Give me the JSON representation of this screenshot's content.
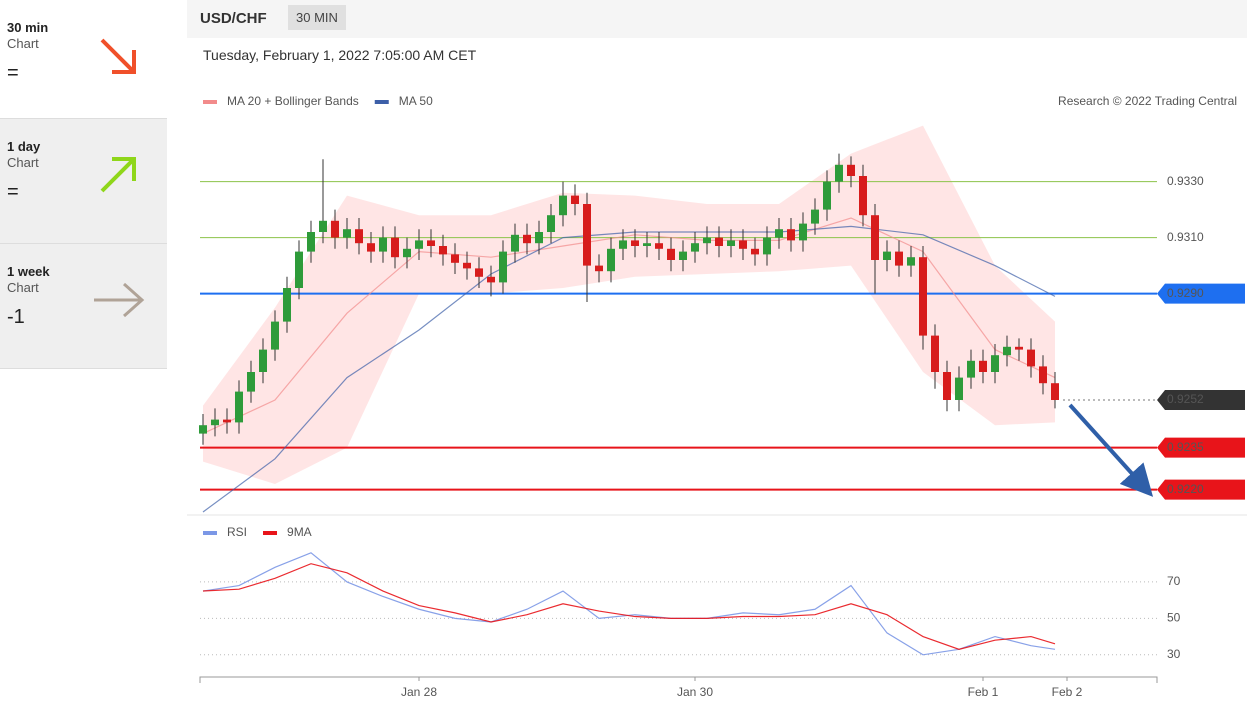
{
  "sidebar": [
    {
      "period": "30 min",
      "type": "Chart",
      "rating": "="
    },
    {
      "period": "1 day",
      "type": "Chart",
      "rating": "="
    },
    {
      "period": "1 week",
      "type": "Chart",
      "rating": "-1"
    }
  ],
  "header": {
    "symbol": "USD/CHF",
    "interval": "30 MIN",
    "datetime": "Tuesday, February 1, 2022 7:05:00 AM CET",
    "credit": "Research © 2022 Trading Central"
  },
  "chart_data": [
    {
      "type": "candlestick",
      "up_color": "#2e9b3a",
      "down_color": "#d71c1c",
      "x": [
        0,
        1,
        2,
        3,
        4,
        5,
        6,
        7,
        8,
        9,
        10,
        11,
        12,
        13,
        14,
        15,
        16,
        17,
        18,
        19,
        20,
        21,
        22,
        23,
        24,
        25,
        26,
        27,
        28,
        29,
        30,
        31,
        32,
        33,
        34,
        35,
        36,
        37,
        38,
        39,
        40,
        41,
        42,
        43,
        44,
        45,
        46,
        47,
        48,
        49,
        50,
        51,
        52,
        53,
        54,
        55,
        56,
        57,
        58,
        59,
        60,
        61,
        62,
        63,
        64,
        65,
        66,
        67,
        68,
        69,
        70,
        71
      ],
      "ohlc": [
        [
          0.924,
          0.9247,
          0.9236,
          0.9243
        ],
        [
          0.9243,
          0.9249,
          0.9239,
          0.9245
        ],
        [
          0.9245,
          0.9249,
          0.924,
          0.9244
        ],
        [
          0.9244,
          0.9259,
          0.924,
          0.9255
        ],
        [
          0.9255,
          0.9266,
          0.9251,
          0.9262
        ],
        [
          0.9262,
          0.9274,
          0.9258,
          0.927
        ],
        [
          0.927,
          0.9284,
          0.9266,
          0.928
        ],
        [
          0.928,
          0.9296,
          0.9276,
          0.9292
        ],
        [
          0.9292,
          0.9309,
          0.9288,
          0.9305
        ],
        [
          0.9305,
          0.9316,
          0.9301,
          0.9312
        ],
        [
          0.9312,
          0.9338,
          0.9308,
          0.9316
        ],
        [
          0.9316,
          0.932,
          0.9306,
          0.931
        ],
        [
          0.931,
          0.9317,
          0.9306,
          0.9313
        ],
        [
          0.9313,
          0.9317,
          0.9304,
          0.9308
        ],
        [
          0.9308,
          0.9312,
          0.9301,
          0.9305
        ],
        [
          0.9305,
          0.9314,
          0.9301,
          0.931
        ],
        [
          0.931,
          0.9314,
          0.9299,
          0.9303
        ],
        [
          0.9303,
          0.931,
          0.9299,
          0.9306
        ],
        [
          0.9306,
          0.9313,
          0.9302,
          0.9309
        ],
        [
          0.9309,
          0.9313,
          0.9303,
          0.9307
        ],
        [
          0.9307,
          0.9311,
          0.93,
          0.9304
        ],
        [
          0.9304,
          0.9308,
          0.9297,
          0.9301
        ],
        [
          0.9301,
          0.9305,
          0.9295,
          0.9299
        ],
        [
          0.9299,
          0.9303,
          0.9292,
          0.9296
        ],
        [
          0.9296,
          0.93,
          0.9289,
          0.9294
        ],
        [
          0.9294,
          0.9309,
          0.929,
          0.9305
        ],
        [
          0.9305,
          0.9315,
          0.9301,
          0.9311
        ],
        [
          0.9311,
          0.9315,
          0.9304,
          0.9308
        ],
        [
          0.9308,
          0.9316,
          0.9304,
          0.9312
        ],
        [
          0.9312,
          0.9322,
          0.9308,
          0.9318
        ],
        [
          0.9318,
          0.933,
          0.9314,
          0.9325
        ],
        [
          0.9325,
          0.9329,
          0.9318,
          0.9322
        ],
        [
          0.9322,
          0.9326,
          0.9287,
          0.93
        ],
        [
          0.93,
          0.9304,
          0.9294,
          0.9298
        ],
        [
          0.9298,
          0.931,
          0.9294,
          0.9306
        ],
        [
          0.9306,
          0.9313,
          0.9302,
          0.9309
        ],
        [
          0.9309,
          0.9313,
          0.9303,
          0.9307
        ],
        [
          0.9307,
          0.9312,
          0.9303,
          0.9308
        ],
        [
          0.9308,
          0.9312,
          0.9302,
          0.9306
        ],
        [
          0.9306,
          0.931,
          0.9298,
          0.9302
        ],
        [
          0.9302,
          0.9309,
          0.9298,
          0.9305
        ],
        [
          0.9305,
          0.9312,
          0.9301,
          0.9308
        ],
        [
          0.9308,
          0.9314,
          0.9304,
          0.931
        ],
        [
          0.931,
          0.9314,
          0.9303,
          0.9307
        ],
        [
          0.9307,
          0.9313,
          0.9303,
          0.9309
        ],
        [
          0.9309,
          0.9313,
          0.9302,
          0.9306
        ],
        [
          0.9306,
          0.931,
          0.93,
          0.9304
        ],
        [
          0.9304,
          0.9314,
          0.93,
          0.931
        ],
        [
          0.931,
          0.9317,
          0.9306,
          0.9313
        ],
        [
          0.9313,
          0.9317,
          0.9305,
          0.9309
        ],
        [
          0.9309,
          0.9319,
          0.9305,
          0.9315
        ],
        [
          0.9315,
          0.9324,
          0.9311,
          0.932
        ],
        [
          0.932,
          0.9334,
          0.9316,
          0.933
        ],
        [
          0.933,
          0.934,
          0.9326,
          0.9336
        ],
        [
          0.9336,
          0.9339,
          0.9328,
          0.9332
        ],
        [
          0.9332,
          0.9336,
          0.9314,
          0.9318
        ],
        [
          0.9318,
          0.9322,
          0.929,
          0.9302
        ],
        [
          0.9302,
          0.9309,
          0.9298,
          0.9305
        ],
        [
          0.9305,
          0.9309,
          0.9296,
          0.93
        ],
        [
          0.93,
          0.9307,
          0.9296,
          0.9303
        ],
        [
          0.9303,
          0.9307,
          0.927,
          0.9275
        ],
        [
          0.9275,
          0.9279,
          0.9256,
          0.9262
        ],
        [
          0.9262,
          0.9266,
          0.9248,
          0.9252
        ],
        [
          0.9252,
          0.9264,
          0.9248,
          0.926
        ],
        [
          0.926,
          0.927,
          0.9256,
          0.9266
        ],
        [
          0.9266,
          0.927,
          0.9258,
          0.9262
        ],
        [
          0.9262,
          0.9272,
          0.9258,
          0.9268
        ],
        [
          0.9268,
          0.9275,
          0.9264,
          0.9271
        ],
        [
          0.9271,
          0.9274,
          0.9266,
          0.927
        ],
        [
          0.927,
          0.9274,
          0.926,
          0.9264
        ],
        [
          0.9264,
          0.9268,
          0.9254,
          0.9258
        ],
        [
          0.9258,
          0.9262,
          0.9249,
          0.9252
        ]
      ],
      "series": [
        {
          "name": "MA 20 + Bollinger Bands",
          "color": "#f28b8b",
          "band_color": "#ffdede",
          "x": [
            0,
            6,
            12,
            18,
            24,
            30,
            36,
            42,
            48,
            54,
            60,
            66,
            71
          ],
          "values": [
            0.924,
            0.9252,
            0.9283,
            0.9305,
            0.9303,
            0.9307,
            0.9311,
            0.9309,
            0.9309,
            0.9317,
            0.9305,
            0.927,
            0.926
          ],
          "upper": [
            0.925,
            0.9285,
            0.9325,
            0.9318,
            0.9318,
            0.9326,
            0.9325,
            0.9322,
            0.9322,
            0.934,
            0.935,
            0.93,
            0.928
          ],
          "lower": [
            0.923,
            0.9222,
            0.9235,
            0.929,
            0.929,
            0.9292,
            0.9296,
            0.9297,
            0.9298,
            0.93,
            0.9262,
            0.9243,
            0.9244
          ]
        },
        {
          "name": "MA 50",
          "color": "#3d5fa8",
          "x": [
            0,
            6,
            12,
            18,
            24,
            30,
            36,
            42,
            48,
            54,
            60,
            66,
            71
          ],
          "values": [
            0.9212,
            0.9231,
            0.926,
            0.9277,
            0.9297,
            0.931,
            0.9312,
            0.9312,
            0.9312,
            0.9314,
            0.9311,
            0.93,
            0.9289
          ]
        }
      ],
      "levels": [
        {
          "value": 0.933,
          "label": "0.9330",
          "color": "#8bc34a",
          "line": "solid",
          "box": false
        },
        {
          "value": 0.931,
          "label": "0.9310",
          "color": "#8bc34a",
          "line": "solid",
          "box": false
        },
        {
          "value": 0.929,
          "label": "0.9290",
          "color": "#1e6ff0",
          "line": "solid",
          "box": true
        },
        {
          "value": 0.9252,
          "label": "0.9252",
          "color": "#333333",
          "line": "dotted",
          "box": true
        },
        {
          "value": 0.9235,
          "label": "0.9235",
          "color": "#e8141a",
          "line": "solid",
          "box": true
        },
        {
          "value": 0.922,
          "label": "0.9220",
          "color": "#e8141a",
          "line": "solid",
          "box": true
        }
      ],
      "xlim": [
        -0.25,
        79.5
      ],
      "ylim": [
        0.9212,
        0.9352
      ]
    },
    {
      "type": "line",
      "x": [
        0,
        3,
        6,
        9,
        12,
        15,
        18,
        21,
        24,
        27,
        30,
        33,
        36,
        39,
        42,
        45,
        48,
        51,
        54,
        57,
        60,
        63,
        66,
        69,
        71
      ],
      "series": [
        {
          "name": "RSI",
          "color": "#7b97e6",
          "values": [
            65,
            68,
            78,
            86,
            70,
            62,
            55,
            50,
            48,
            55,
            65,
            50,
            52,
            50,
            50,
            53,
            52,
            55,
            68,
            42,
            30,
            33,
            40,
            35,
            33
          ]
        },
        {
          "name": "9MA",
          "color": "#e8141a",
          "values": [
            65,
            66,
            72,
            80,
            75,
            65,
            57,
            53,
            48,
            52,
            58,
            54,
            51,
            50,
            50,
            51,
            51,
            52,
            58,
            52,
            40,
            33,
            38,
            40,
            36
          ]
        }
      ],
      "xlim": [
        -0.25,
        79.5
      ],
      "ylim": [
        20,
        90
      ],
      "yticks": [
        70,
        50,
        30
      ],
      "grid": true,
      "xticks": [
        {
          "value": 18,
          "label": "Jan 28"
        },
        {
          "value": 41,
          "label": "Jan 30"
        },
        {
          "value": 65,
          "label": "Feb 1"
        },
        {
          "value": 72,
          "label": "Feb 2"
        }
      ]
    }
  ]
}
